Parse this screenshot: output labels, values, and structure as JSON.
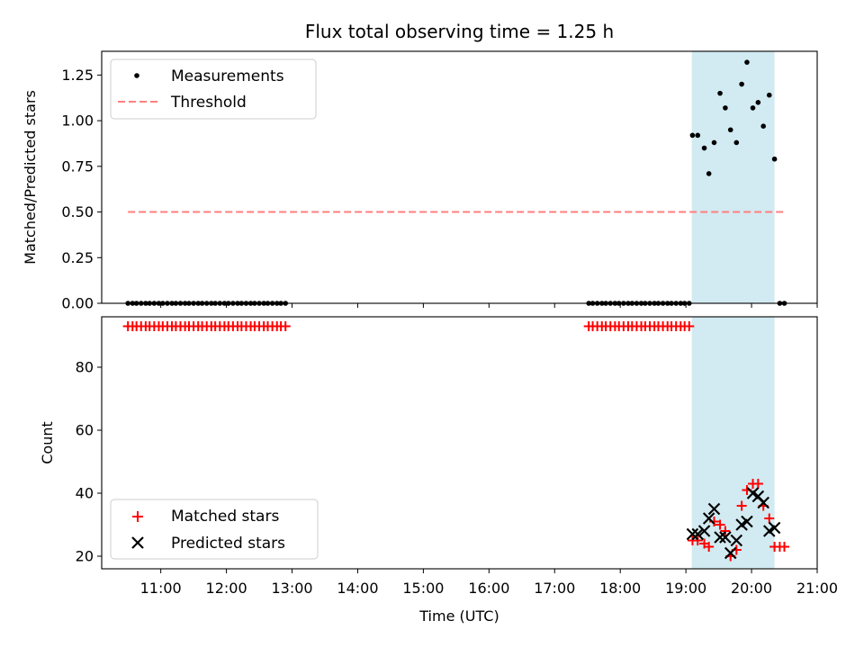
{
  "chart_data": [
    {
      "type": "scatter",
      "title": "Flux total observing time = 1.25 h",
      "xlabel": "",
      "ylabel": "Matched/Predicted stars",
      "xlim": [
        10.1,
        21.0
      ],
      "ylim": [
        0.0,
        1.38
      ],
      "yticks": [
        0.0,
        0.25,
        0.5,
        0.75,
        1.0,
        1.25
      ],
      "ytick_labels": [
        "0.00",
        "0.25",
        "0.50",
        "0.75",
        "1.00",
        "1.25"
      ],
      "grid": false,
      "legend_position": "upper left",
      "highlight_span": {
        "x0": 19.09,
        "x1": 20.35,
        "color": "#add8e6"
      },
      "series": [
        {
          "name": "Measurements",
          "kind": "scatter",
          "color": "#000000",
          "points": [
            [
              10.5,
              0
            ],
            [
              10.57,
              0
            ],
            [
              10.63,
              0
            ],
            [
              10.7,
              0
            ],
            [
              10.77,
              0
            ],
            [
              10.83,
              0
            ],
            [
              10.9,
              0
            ],
            [
              10.97,
              0
            ],
            [
              11.03,
              0
            ],
            [
              11.1,
              0
            ],
            [
              11.17,
              0
            ],
            [
              11.23,
              0
            ],
            [
              11.3,
              0
            ],
            [
              11.37,
              0
            ],
            [
              11.43,
              0
            ],
            [
              11.5,
              0
            ],
            [
              11.57,
              0
            ],
            [
              11.63,
              0
            ],
            [
              11.7,
              0
            ],
            [
              11.77,
              0
            ],
            [
              11.83,
              0
            ],
            [
              11.9,
              0
            ],
            [
              11.97,
              0
            ],
            [
              12.03,
              0
            ],
            [
              12.1,
              0
            ],
            [
              12.17,
              0
            ],
            [
              12.23,
              0
            ],
            [
              12.3,
              0
            ],
            [
              12.37,
              0
            ],
            [
              12.43,
              0
            ],
            [
              12.5,
              0
            ],
            [
              12.57,
              0
            ],
            [
              12.63,
              0
            ],
            [
              12.7,
              0
            ],
            [
              12.77,
              0
            ],
            [
              12.83,
              0
            ],
            [
              12.9,
              0
            ],
            [
              17.52,
              0
            ],
            [
              17.58,
              0
            ],
            [
              17.65,
              0
            ],
            [
              17.72,
              0
            ],
            [
              17.78,
              0
            ],
            [
              17.85,
              0
            ],
            [
              17.92,
              0
            ],
            [
              17.98,
              0
            ],
            [
              18.05,
              0
            ],
            [
              18.12,
              0
            ],
            [
              18.18,
              0
            ],
            [
              18.25,
              0
            ],
            [
              18.32,
              0
            ],
            [
              18.38,
              0
            ],
            [
              18.45,
              0
            ],
            [
              18.52,
              0
            ],
            [
              18.58,
              0
            ],
            [
              18.65,
              0
            ],
            [
              18.72,
              0
            ],
            [
              18.78,
              0
            ],
            [
              18.85,
              0
            ],
            [
              18.92,
              0
            ],
            [
              18.98,
              0
            ],
            [
              19.05,
              0
            ],
            [
              19.1,
              0.92
            ],
            [
              19.18,
              0.92
            ],
            [
              19.28,
              0.85
            ],
            [
              19.35,
              0.71
            ],
            [
              19.43,
              0.88
            ],
            [
              19.52,
              1.15
            ],
            [
              19.6,
              1.07
            ],
            [
              19.68,
              0.95
            ],
            [
              19.77,
              0.88
            ],
            [
              19.85,
              1.2
            ],
            [
              19.93,
              1.32
            ],
            [
              20.02,
              1.07
            ],
            [
              20.1,
              1.1
            ],
            [
              20.18,
              0.97
            ],
            [
              20.27,
              1.14
            ],
            [
              20.35,
              0.79
            ],
            [
              20.43,
              0
            ],
            [
              20.5,
              0
            ]
          ]
        },
        {
          "name": "Threshold",
          "kind": "line",
          "style": "dashed",
          "color": "#ff7f7f",
          "x": [
            10.5,
            20.5
          ],
          "y": [
            0.5,
            0.5
          ]
        }
      ]
    },
    {
      "type": "scatter",
      "title": "",
      "xlabel": "Time (UTC)",
      "ylabel": "Count",
      "xlim": [
        10.1,
        21.0
      ],
      "ylim": [
        16,
        96
      ],
      "yticks": [
        20,
        40,
        60,
        80
      ],
      "ytick_labels": [
        "20",
        "40",
        "60",
        "80"
      ],
      "xticks": [
        11,
        12,
        13,
        14,
        15,
        16,
        17,
        18,
        19,
        20,
        21
      ],
      "xtick_labels": [
        "11:00",
        "12:00",
        "13:00",
        "14:00",
        "15:00",
        "16:00",
        "17:00",
        "18:00",
        "19:00",
        "20:00",
        "21:00"
      ],
      "grid": false,
      "legend_position": "lower left",
      "highlight_span": {
        "x0": 19.09,
        "x1": 20.35,
        "color": "#add8e6"
      },
      "series": [
        {
          "name": "Matched stars",
          "kind": "scatter",
          "marker": "+",
          "color": "#ff0000",
          "points": [
            [
              10.5,
              93
            ],
            [
              10.57,
              93
            ],
            [
              10.63,
              93
            ],
            [
              10.7,
              93
            ],
            [
              10.77,
              93
            ],
            [
              10.83,
              93
            ],
            [
              10.9,
              93
            ],
            [
              10.97,
              93
            ],
            [
              11.03,
              93
            ],
            [
              11.1,
              93
            ],
            [
              11.17,
              93
            ],
            [
              11.23,
              93
            ],
            [
              11.3,
              93
            ],
            [
              11.37,
              93
            ],
            [
              11.43,
              93
            ],
            [
              11.5,
              93
            ],
            [
              11.57,
              93
            ],
            [
              11.63,
              93
            ],
            [
              11.7,
              93
            ],
            [
              11.77,
              93
            ],
            [
              11.83,
              93
            ],
            [
              11.9,
              93
            ],
            [
              11.97,
              93
            ],
            [
              12.03,
              93
            ],
            [
              12.1,
              93
            ],
            [
              12.17,
              93
            ],
            [
              12.23,
              93
            ],
            [
              12.3,
              93
            ],
            [
              12.37,
              93
            ],
            [
              12.43,
              93
            ],
            [
              12.5,
              93
            ],
            [
              12.57,
              93
            ],
            [
              12.63,
              93
            ],
            [
              12.7,
              93
            ],
            [
              12.77,
              93
            ],
            [
              12.83,
              93
            ],
            [
              12.9,
              93
            ],
            [
              17.52,
              93
            ],
            [
              17.58,
              93
            ],
            [
              17.65,
              93
            ],
            [
              17.72,
              93
            ],
            [
              17.78,
              93
            ],
            [
              17.85,
              93
            ],
            [
              17.92,
              93
            ],
            [
              17.98,
              93
            ],
            [
              18.05,
              93
            ],
            [
              18.12,
              93
            ],
            [
              18.18,
              93
            ],
            [
              18.25,
              93
            ],
            [
              18.32,
              93
            ],
            [
              18.38,
              93
            ],
            [
              18.45,
              93
            ],
            [
              18.52,
              93
            ],
            [
              18.58,
              93
            ],
            [
              18.65,
              93
            ],
            [
              18.72,
              93
            ],
            [
              18.78,
              93
            ],
            [
              18.85,
              93
            ],
            [
              18.92,
              93
            ],
            [
              18.98,
              93
            ],
            [
              19.05,
              93
            ],
            [
              19.1,
              25
            ],
            [
              19.18,
              25
            ],
            [
              19.28,
              24
            ],
            [
              19.35,
              23
            ],
            [
              19.43,
              31
            ],
            [
              19.52,
              30
            ],
            [
              19.6,
              28
            ],
            [
              19.68,
              20
            ],
            [
              19.77,
              22
            ],
            [
              19.85,
              36
            ],
            [
              19.93,
              41
            ],
            [
              20.02,
              43
            ],
            [
              20.1,
              43
            ],
            [
              20.18,
              36
            ],
            [
              20.27,
              32
            ],
            [
              20.35,
              23
            ],
            [
              20.43,
              23
            ],
            [
              20.5,
              23
            ]
          ]
        },
        {
          "name": "Predicted stars",
          "kind": "scatter",
          "marker": "x",
          "color": "#000000",
          "points": [
            [
              19.1,
              27
            ],
            [
              19.18,
              27
            ],
            [
              19.28,
              28
            ],
            [
              19.35,
              32
            ],
            [
              19.43,
              35
            ],
            [
              19.52,
              26
            ],
            [
              19.6,
              26
            ],
            [
              19.68,
              21
            ],
            [
              19.77,
              25
            ],
            [
              19.85,
              30
            ],
            [
              19.93,
              31
            ],
            [
              20.02,
              40
            ],
            [
              20.1,
              39
            ],
            [
              20.18,
              37
            ],
            [
              20.27,
              28
            ],
            [
              20.35,
              29
            ]
          ]
        }
      ]
    }
  ]
}
